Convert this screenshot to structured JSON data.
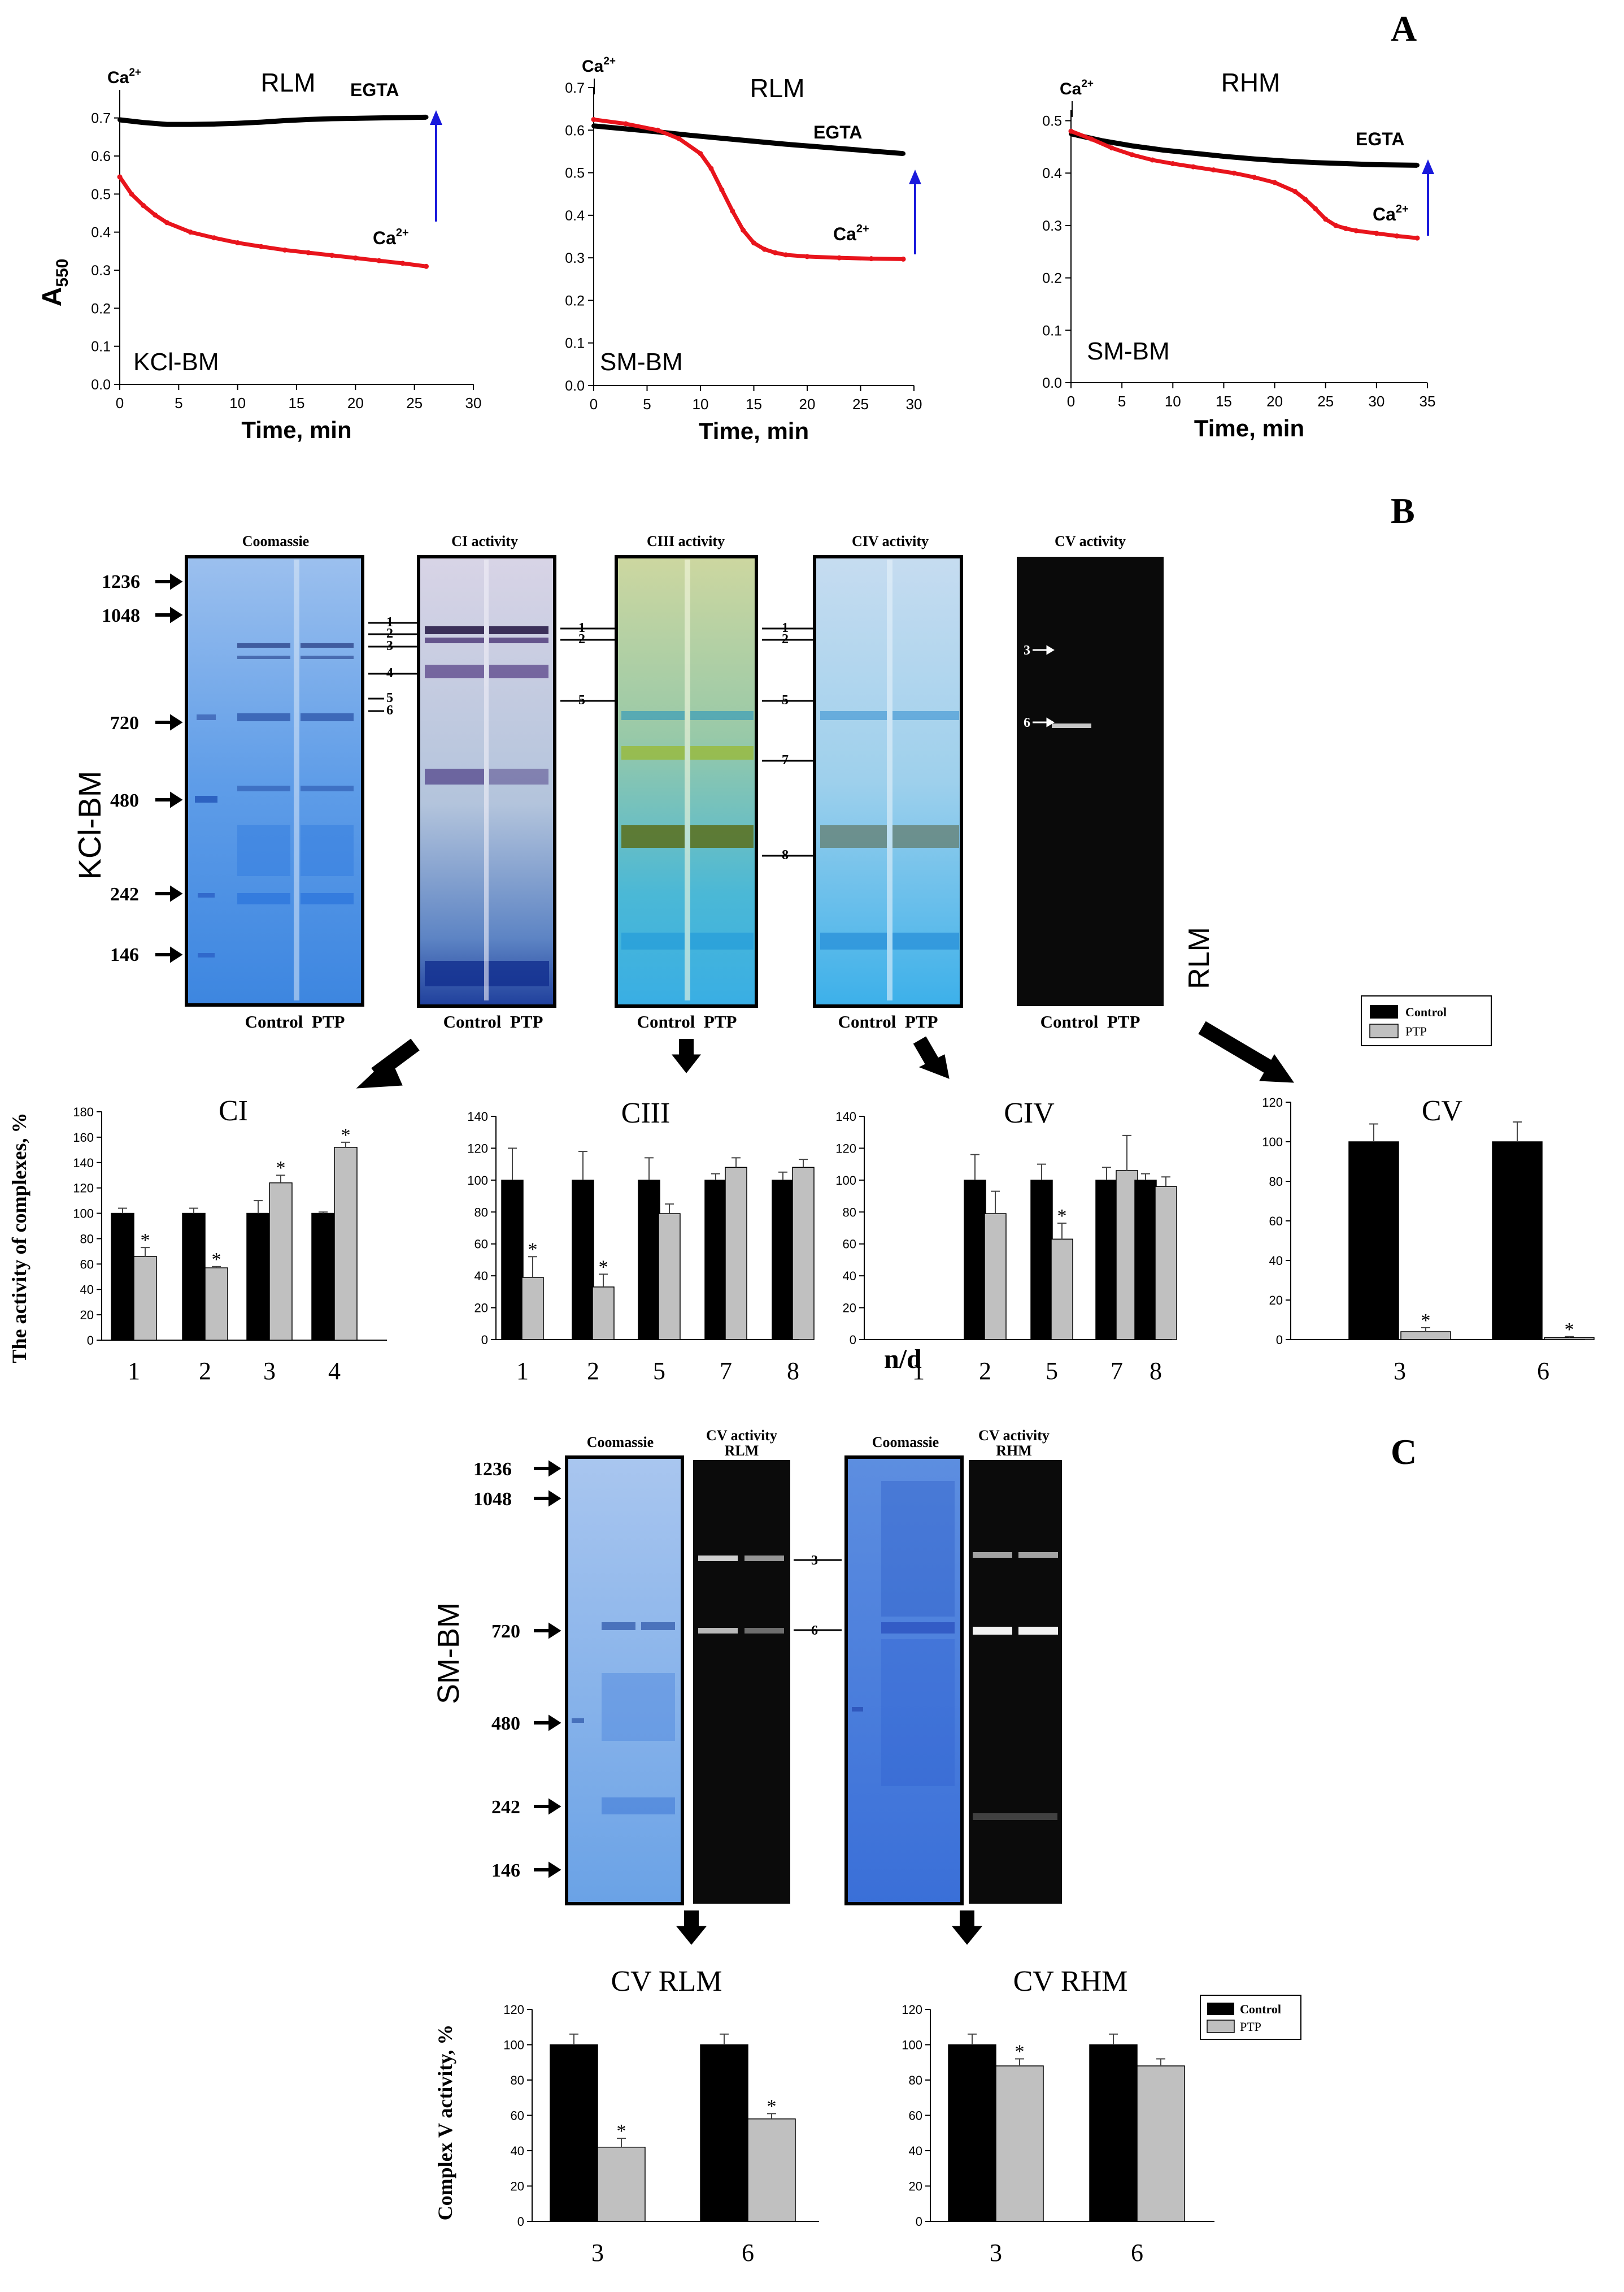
{
  "panel_letters": {
    "a": "A",
    "b": "B",
    "c": "C"
  },
  "colors": {
    "control": "#000000",
    "ptp": "#c0c0c0",
    "egta_trace": "#000000",
    "ca_trace": "#e8141c",
    "arrow": "#1a1adc"
  },
  "icons": {
    "big_arrow": "black-diagonal-arrow-icon",
    "gel_marker_arrow": "marker-arrow-icon",
    "band_arrow": "double-headed-band-arrow-icon"
  },
  "chart_data": [
    {
      "type": "line",
      "id": "a1",
      "title": "RLM",
      "corner_label": "KCl-BM",
      "xlabel": "Time, min",
      "ylabel": "A550",
      "xlim": [
        0,
        30
      ],
      "ylim": [
        0.0,
        0.75
      ],
      "xticks": [
        "0",
        "5",
        "10",
        "15",
        "20",
        "25",
        "30"
      ],
      "yticks": [
        "0.0",
        "0.1",
        "0.2",
        "0.3",
        "0.4",
        "0.5",
        "0.6",
        "0.7"
      ],
      "series": [
        {
          "name": "EGTA",
          "x": [
            0,
            2,
            4,
            6,
            8,
            10,
            12,
            14,
            16,
            18,
            20,
            22,
            24,
            26
          ],
          "y": [
            0.695,
            0.688,
            0.683,
            0.683,
            0.684,
            0.686,
            0.689,
            0.693,
            0.696,
            0.698,
            0.699,
            0.7,
            0.701,
            0.702
          ]
        },
        {
          "name": "Ca2+",
          "x": [
            0,
            1,
            2,
            3,
            4,
            6,
            8,
            10,
            12,
            14,
            16,
            18,
            20,
            22,
            24,
            26
          ],
          "y": [
            0.545,
            0.5,
            0.47,
            0.445,
            0.425,
            0.4,
            0.385,
            0.372,
            0.362,
            0.353,
            0.346,
            0.339,
            0.332,
            0.325,
            0.318,
            0.31
          ]
        }
      ]
    },
    {
      "type": "line",
      "id": "a2",
      "title": "RLM",
      "corner_label": "SM-BM",
      "xlabel": "Time, min",
      "ylabel": "",
      "xlim": [
        0,
        30
      ],
      "ylim": [
        0.0,
        0.7
      ],
      "xticks": [
        "0",
        "5",
        "10",
        "15",
        "20",
        "25",
        "30"
      ],
      "yticks": [
        "0.0",
        "0.1",
        "0.2",
        "0.3",
        "0.4",
        "0.5",
        "0.6",
        "0.7"
      ],
      "series": [
        {
          "name": "EGTA",
          "x": [
            0,
            3,
            6,
            9,
            12,
            15,
            18,
            21,
            24,
            27,
            29
          ],
          "y": [
            0.61,
            0.603,
            0.596,
            0.588,
            0.581,
            0.574,
            0.567,
            0.561,
            0.555,
            0.549,
            0.545
          ]
        },
        {
          "name": "Ca2+",
          "x": [
            0,
            3,
            6,
            8,
            10,
            11,
            12,
            13,
            14,
            15,
            16,
            17,
            18,
            20,
            23,
            26,
            29
          ],
          "y": [
            0.625,
            0.615,
            0.6,
            0.58,
            0.545,
            0.51,
            0.46,
            0.41,
            0.365,
            0.335,
            0.32,
            0.312,
            0.307,
            0.303,
            0.3,
            0.298,
            0.297
          ]
        }
      ]
    },
    {
      "type": "line",
      "id": "a3",
      "title": "RHM",
      "corner_label": "SM-BM",
      "xlabel": "Time, min",
      "ylabel": "",
      "xlim": [
        0,
        35
      ],
      "ylim": [
        0.0,
        0.52
      ],
      "xticks": [
        "0",
        "5",
        "10",
        "15",
        "20",
        "25",
        "30",
        "35"
      ],
      "yticks": [
        "0.0",
        "0.1",
        "0.2",
        "0.3",
        "0.4",
        "0.5"
      ],
      "series": [
        {
          "name": "EGTA",
          "x": [
            0,
            3,
            6,
            9,
            12,
            15,
            18,
            21,
            24,
            27,
            30,
            34
          ],
          "y": [
            0.475,
            0.462,
            0.452,
            0.444,
            0.438,
            0.432,
            0.427,
            0.423,
            0.42,
            0.418,
            0.416,
            0.415
          ]
        },
        {
          "name": "Ca2+",
          "x": [
            0,
            2,
            4,
            6,
            8,
            10,
            12,
            14,
            16,
            18,
            20,
            22,
            23,
            24,
            25,
            26,
            27,
            28,
            30,
            32,
            34
          ],
          "y": [
            0.48,
            0.465,
            0.448,
            0.435,
            0.425,
            0.418,
            0.412,
            0.406,
            0.4,
            0.392,
            0.382,
            0.365,
            0.35,
            0.332,
            0.312,
            0.3,
            0.294,
            0.29,
            0.285,
            0.28,
            0.276
          ]
        }
      ]
    },
    {
      "type": "bar",
      "id": "b1",
      "title": "CI",
      "ylabel": "The activity of complexes,  %",
      "categories": [
        "1",
        "2",
        "3",
        "4"
      ],
      "ylim": [
        0,
        180
      ],
      "yticks": [
        "0",
        "20",
        "40",
        "60",
        "80",
        "100",
        "120",
        "140",
        "160",
        "180"
      ],
      "series": [
        {
          "name": "Control",
          "values": [
            100,
            100,
            100,
            100
          ],
          "errors": [
            4,
            4,
            10,
            1
          ]
        },
        {
          "name": "PTP",
          "values": [
            66,
            57,
            124,
            152
          ],
          "errors": [
            7,
            1,
            6,
            4
          ]
        }
      ],
      "significant": [
        false,
        false,
        false,
        false,
        true,
        true,
        true,
        true
      ]
    },
    {
      "type": "bar",
      "id": "b2",
      "title": "CIII",
      "ylabel": "",
      "categories": [
        "1",
        "2",
        "5",
        "7",
        "8"
      ],
      "ylim": [
        0,
        140
      ],
      "yticks": [
        "0",
        "20",
        "40",
        "60",
        "80",
        "100",
        "120",
        "140"
      ],
      "series": [
        {
          "name": "Control",
          "values": [
            100,
            100,
            100,
            100,
            100
          ],
          "errors": [
            20,
            18,
            14,
            4,
            5
          ]
        },
        {
          "name": "PTP",
          "values": [
            39,
            33,
            79,
            108,
            108
          ],
          "errors": [
            13,
            8,
            6,
            6,
            5
          ]
        }
      ],
      "significant": [
        false,
        false,
        false,
        false,
        false,
        true,
        true,
        false,
        false,
        false
      ]
    },
    {
      "type": "bar",
      "id": "b3",
      "title": "CIV",
      "ylabel": "",
      "na_label": "n/d",
      "categories": [
        "1",
        "2",
        "5",
        "7",
        "8"
      ],
      "ylim": [
        0,
        140
      ],
      "yticks": [
        "0",
        "20",
        "40",
        "60",
        "80",
        "100",
        "120",
        "140"
      ],
      "series": [
        {
          "name": "Control",
          "values": [
            null,
            100,
            100,
            100,
            100
          ],
          "errors": [
            0,
            16,
            10,
            8,
            4
          ]
        },
        {
          "name": "PTP",
          "values": [
            null,
            79,
            63,
            106,
            96
          ],
          "errors": [
            0,
            14,
            10,
            22,
            6
          ]
        }
      ],
      "significant": [
        false,
        false,
        false,
        false,
        false,
        false,
        false,
        true,
        false,
        false
      ]
    },
    {
      "type": "bar",
      "id": "b4",
      "title": "CV",
      "ylabel": "",
      "legend": "top",
      "categories": [
        "3",
        "6"
      ],
      "ylim": [
        0,
        120
      ],
      "yticks": [
        "0",
        "20",
        "40",
        "60",
        "80",
        "100",
        "120"
      ],
      "series": [
        {
          "name": "Control",
          "values": [
            100,
            100
          ],
          "errors": [
            9,
            10
          ]
        },
        {
          "name": "PTP",
          "values": [
            4,
            1
          ],
          "errors": [
            2,
            0.5
          ]
        }
      ],
      "significant": [
        false,
        false,
        true,
        true
      ]
    },
    {
      "type": "bar",
      "id": "c1",
      "title": "CV RLM",
      "ylabel": "Complex V activity,  %",
      "categories": [
        "3",
        "6"
      ],
      "ylim": [
        0,
        120
      ],
      "yticks": [
        "0",
        "20",
        "40",
        "60",
        "80",
        "100",
        "120"
      ],
      "series": [
        {
          "name": "Control",
          "values": [
            100,
            100
          ],
          "errors": [
            6,
            6
          ]
        },
        {
          "name": "PTP",
          "values": [
            42,
            58
          ],
          "errors": [
            5,
            3
          ]
        }
      ],
      "significant": [
        false,
        false,
        true,
        true
      ]
    },
    {
      "type": "bar",
      "id": "c2",
      "title": "CV RHM",
      "ylabel": "",
      "legend": "top-right",
      "categories": [
        "3",
        "6"
      ],
      "ylim": [
        0,
        120
      ],
      "yticks": [
        "0",
        "20",
        "40",
        "60",
        "80",
        "100",
        "120"
      ],
      "series": [
        {
          "name": "Control",
          "values": [
            100,
            100
          ],
          "errors": [
            6,
            6
          ]
        },
        {
          "name": "PTP",
          "values": [
            88,
            88
          ],
          "errors": [
            4,
            4
          ]
        }
      ],
      "significant": [
        false,
        false,
        true,
        false
      ]
    }
  ],
  "panel_a": {
    "egta_label": "EGTA",
    "ca_label": "Ca",
    "ca_sup": "2+",
    "ylabel_main": "A",
    "ylabel_sub": "550"
  },
  "panel_b": {
    "side_label": "KCl-BM",
    "rlm_label": "RLM",
    "markers": [
      "1236",
      "1048",
      "720",
      "480",
      "242",
      "146"
    ],
    "lane_labels": "Control  PTP",
    "gels": [
      {
        "title": "Coomassie",
        "bands": [
          "1",
          "2",
          "3",
          "4",
          "5",
          "6"
        ]
      },
      {
        "title": "CI activity",
        "bands": [
          "1",
          "2",
          "5"
        ]
      },
      {
        "title": "CIII activity",
        "bands": [
          "1",
          "2",
          "5",
          "7",
          "8"
        ]
      },
      {
        "title": "CIV activity",
        "bands": []
      },
      {
        "title": "CV activity",
        "bands": [
          "3",
          "6"
        ]
      }
    ],
    "legend": {
      "control": "Control",
      "ptp": "PTP"
    }
  },
  "panel_c": {
    "side_label": "SM-BM",
    "markers": [
      "1236",
      "1048",
      "720",
      "480",
      "242",
      "146"
    ],
    "gels": [
      {
        "title": "Coomassie",
        "subtitle": ""
      },
      {
        "title": "CV activity",
        "subtitle": "RLM"
      },
      {
        "title": "Coomassie",
        "subtitle": ""
      },
      {
        "title": "CV activity",
        "subtitle": "RHM"
      }
    ],
    "bands": [
      "3",
      "6"
    ],
    "legend": {
      "control": "Control",
      "ptp": "PTP"
    }
  }
}
